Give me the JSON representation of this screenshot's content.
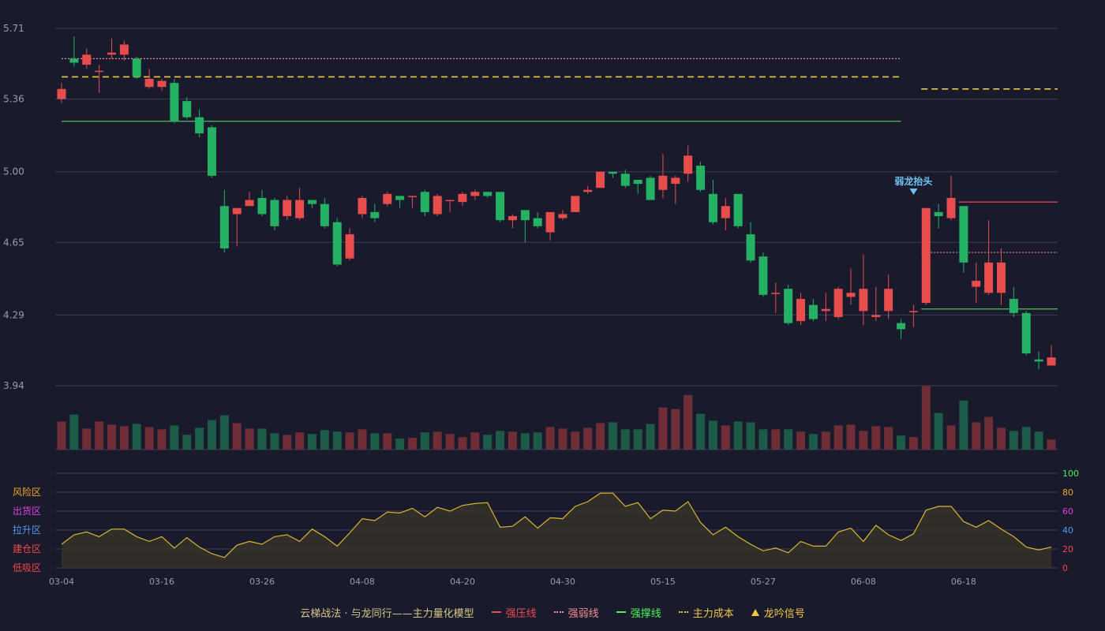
{
  "chart_data": {
    "type": "candlestick",
    "price_axis": {
      "ticks": [
        "5.71",
        "5.36",
        "5.00",
        "4.65",
        "4.29",
        "3.94"
      ],
      "ylim": [
        3.94,
        5.71
      ]
    },
    "x_axis": {
      "ticks": [
        "03-04",
        "03-16",
        "03-26",
        "04-08",
        "04-20",
        "04-30",
        "05-15",
        "05-27",
        "06-08",
        "06-18"
      ]
    },
    "indicator_axis": {
      "ticks": [
        "100",
        "80",
        "60",
        "40",
        "20",
        "0"
      ],
      "ylim": [
        0,
        100
      ]
    },
    "zone_labels": [
      "风险区",
      "出货区",
      "拉升区",
      "建仓区",
      "低吸区"
    ],
    "zone_colors": [
      "#f2a52c",
      "#e040e0",
      "#4f9bf0",
      "#f04848",
      "#f04848"
    ],
    "annotation": {
      "text": "弱龙抬头",
      "index": 68
    },
    "candles": [
      [
        5.36,
        5.41,
        5.34,
        5.44
      ],
      [
        5.56,
        5.54,
        5.52,
        5.67
      ],
      [
        5.53,
        5.58,
        5.51,
        5.61
      ],
      [
        5.5,
        5.5,
        5.39,
        5.53
      ],
      [
        5.58,
        5.59,
        5.56,
        5.66
      ],
      [
        5.58,
        5.63,
        5.55,
        5.65
      ],
      [
        5.56,
        5.47,
        5.46,
        5.57
      ],
      [
        5.42,
        5.46,
        5.41,
        5.51
      ],
      [
        5.42,
        5.45,
        5.4,
        5.46
      ],
      [
        5.44,
        5.25,
        5.24,
        5.46
      ],
      [
        5.35,
        5.27,
        5.26,
        5.37
      ],
      [
        5.27,
        5.19,
        5.17,
        5.31
      ],
      [
        5.22,
        4.98,
        4.97,
        5.23
      ],
      [
        4.83,
        4.62,
        4.6,
        4.91
      ],
      [
        4.79,
        4.82,
        4.63,
        4.82
      ],
      [
        4.83,
        4.86,
        4.83,
        4.9
      ],
      [
        4.87,
        4.79,
        4.78,
        4.91
      ],
      [
        4.86,
        4.73,
        4.71,
        4.87
      ],
      [
        4.78,
        4.86,
        4.76,
        4.88
      ],
      [
        4.77,
        4.86,
        4.76,
        4.92
      ],
      [
        4.86,
        4.84,
        4.82,
        4.86
      ],
      [
        4.84,
        4.73,
        4.72,
        4.87
      ],
      [
        4.75,
        4.54,
        4.53,
        4.77
      ],
      [
        4.57,
        4.69,
        4.56,
        4.72
      ],
      [
        4.79,
        4.87,
        4.77,
        4.88
      ],
      [
        4.8,
        4.77,
        4.75,
        4.84
      ],
      [
        4.84,
        4.89,
        4.83,
        4.9
      ],
      [
        4.88,
        4.86,
        4.82,
        4.88
      ],
      [
        4.88,
        4.88,
        4.82,
        4.88
      ],
      [
        4.9,
        4.8,
        4.78,
        4.91
      ],
      [
        4.79,
        4.88,
        4.78,
        4.89
      ],
      [
        4.86,
        4.86,
        4.8,
        4.86
      ],
      [
        4.85,
        4.89,
        4.83,
        4.9
      ],
      [
        4.88,
        4.9,
        4.86,
        4.91
      ],
      [
        4.9,
        4.88,
        4.87,
        4.9
      ],
      [
        4.9,
        4.76,
        4.75,
        4.9
      ],
      [
        4.76,
        4.78,
        4.72,
        4.79
      ],
      [
        4.81,
        4.76,
        4.65,
        4.81
      ],
      [
        4.77,
        4.73,
        4.72,
        4.8
      ],
      [
        4.7,
        4.8,
        4.66,
        4.8
      ],
      [
        4.77,
        4.79,
        4.76,
        4.81
      ],
      [
        4.8,
        4.88,
        4.8,
        4.88
      ],
      [
        4.9,
        4.91,
        4.89,
        4.93
      ],
      [
        4.92,
        5.0,
        4.92,
        5.0
      ],
      [
        5.0,
        4.99,
        4.97,
        5.0
      ],
      [
        4.99,
        4.93,
        4.92,
        5.01
      ],
      [
        4.96,
        4.94,
        4.89,
        4.96
      ],
      [
        4.97,
        4.86,
        4.86,
        4.98
      ],
      [
        4.91,
        4.98,
        4.87,
        5.09
      ],
      [
        4.94,
        4.97,
        4.84,
        4.98
      ],
      [
        4.99,
        5.08,
        4.95,
        5.13
      ],
      [
        5.03,
        4.91,
        4.9,
        5.05
      ],
      [
        4.89,
        4.75,
        4.74,
        4.96
      ],
      [
        4.77,
        4.83,
        4.71,
        4.87
      ],
      [
        4.89,
        4.73,
        4.72,
        4.89
      ],
      [
        4.69,
        4.56,
        4.55,
        4.75
      ],
      [
        4.58,
        4.39,
        4.38,
        4.6
      ],
      [
        4.4,
        4.4,
        4.3,
        4.45
      ],
      [
        4.42,
        4.25,
        4.24,
        4.44
      ],
      [
        4.26,
        4.37,
        4.24,
        4.4
      ],
      [
        4.34,
        4.27,
        4.26,
        4.37
      ],
      [
        4.31,
        4.32,
        4.26,
        4.4
      ],
      [
        4.28,
        4.42,
        4.27,
        4.43
      ],
      [
        4.38,
        4.4,
        4.34,
        4.52
      ],
      [
        4.31,
        4.42,
        4.24,
        4.59
      ],
      [
        4.28,
        4.29,
        4.26,
        4.43
      ],
      [
        4.31,
        4.42,
        4.27,
        4.49
      ],
      [
        4.25,
        4.22,
        4.17,
        4.27
      ],
      [
        4.31,
        4.31,
        4.23,
        4.34
      ],
      [
        4.35,
        4.82,
        4.34,
        4.82
      ],
      [
        4.8,
        4.78,
        4.72,
        4.84
      ],
      [
        4.77,
        4.87,
        4.76,
        4.98
      ],
      [
        4.83,
        4.55,
        4.5,
        4.83
      ],
      [
        4.43,
        4.46,
        4.35,
        4.55
      ],
      [
        4.4,
        4.55,
        4.39,
        4.76
      ],
      [
        4.4,
        4.55,
        4.34,
        4.62
      ],
      [
        4.37,
        4.3,
        4.28,
        4.43
      ],
      [
        4.3,
        4.1,
        4.09,
        4.31
      ],
      [
        4.07,
        4.06,
        4.02,
        4.11
      ],
      [
        4.04,
        4.08,
        4.04,
        4.14
      ]
    ],
    "volumes": [
      36,
      45,
      27,
      36,
      32,
      30,
      33,
      29,
      26,
      31,
      19,
      28,
      38,
      44,
      34,
      27,
      27,
      21,
      19,
      22,
      20,
      25,
      23,
      22,
      26,
      21,
      21,
      14,
      15,
      22,
      23,
      20,
      16,
      22,
      19,
      24,
      23,
      21,
      22,
      29,
      27,
      23,
      28,
      34,
      35,
      26,
      26,
      33,
      54,
      52,
      70,
      46,
      37,
      31,
      36,
      35,
      26,
      26,
      26,
      23,
      20,
      23,
      31,
      32,
      24,
      30,
      29,
      18,
      16,
      82,
      47,
      31,
      63,
      35,
      42,
      28,
      24,
      29,
      23,
      13
    ],
    "indicator": [
      25,
      35,
      38,
      33,
      41,
      41,
      33,
      28,
      33,
      21,
      32,
      22,
      15,
      11,
      24,
      28,
      25,
      33,
      35,
      28,
      41,
      33,
      23,
      37,
      52,
      50,
      59,
      58,
      63,
      54,
      64,
      60,
      66,
      68,
      69,
      43,
      44,
      54,
      42,
      53,
      52,
      65,
      70,
      79,
      79,
      65,
      69,
      52,
      61,
      60,
      70,
      48,
      35,
      43,
      33,
      25,
      18,
      21,
      16,
      28,
      23,
      23,
      38,
      42,
      28,
      45,
      35,
      29,
      36,
      61,
      65,
      65,
      49,
      43,
      50,
      41,
      33,
      22,
      19,
      22
    ],
    "levels": [
      {
        "name": "强压线",
        "value": 5.56,
        "style": "dotted",
        "color": "#f28c96",
        "from": 0,
        "to": 67
      },
      {
        "name": "主力成本",
        "value": 5.47,
        "style": "dashed",
        "color": "#f2c744",
        "from": 0,
        "to": 67
      },
      {
        "name": "强撑线",
        "value": 5.25,
        "style": "solid",
        "color": "#4cc15a",
        "from": 0,
        "to": 67
      },
      {
        "name": "主力成本",
        "value": 5.41,
        "style": "dashed",
        "color": "#f2c744",
        "from": 69,
        "to": 79
      },
      {
        "name": "强压线",
        "value": 4.85,
        "style": "solid",
        "color": "#e84d4d",
        "from": 72,
        "to": 79
      },
      {
        "name": "强弱线",
        "value": 4.6,
        "style": "dotted",
        "color": "#f28c96",
        "from": 69,
        "to": 79
      },
      {
        "name": "强撑线",
        "value": 4.32,
        "style": "solid",
        "color": "#4cc15a",
        "from": 69,
        "to": 79
      }
    ],
    "colors": {
      "up": "#e84d4d",
      "down": "#25b163",
      "vol_up": "#6e2d37",
      "vol_down": "#1c5b47",
      "indicator": "#d9b630"
    }
  },
  "legend": {
    "title": "云梯战法 · 与龙同行——主力量化模型",
    "items": [
      {
        "label": "强压线",
        "color": "#e84d4d",
        "kind": "line"
      },
      {
        "label": "强弱线",
        "color": "#f28c96",
        "kind": "dot"
      },
      {
        "label": "强撑线",
        "color": "#4cf25a",
        "kind": "line"
      },
      {
        "label": "主力成本",
        "color": "#f2c744",
        "kind": "dot"
      },
      {
        "label": "龙吟信号",
        "color": "#f2c744",
        "kind": "tri"
      }
    ]
  }
}
